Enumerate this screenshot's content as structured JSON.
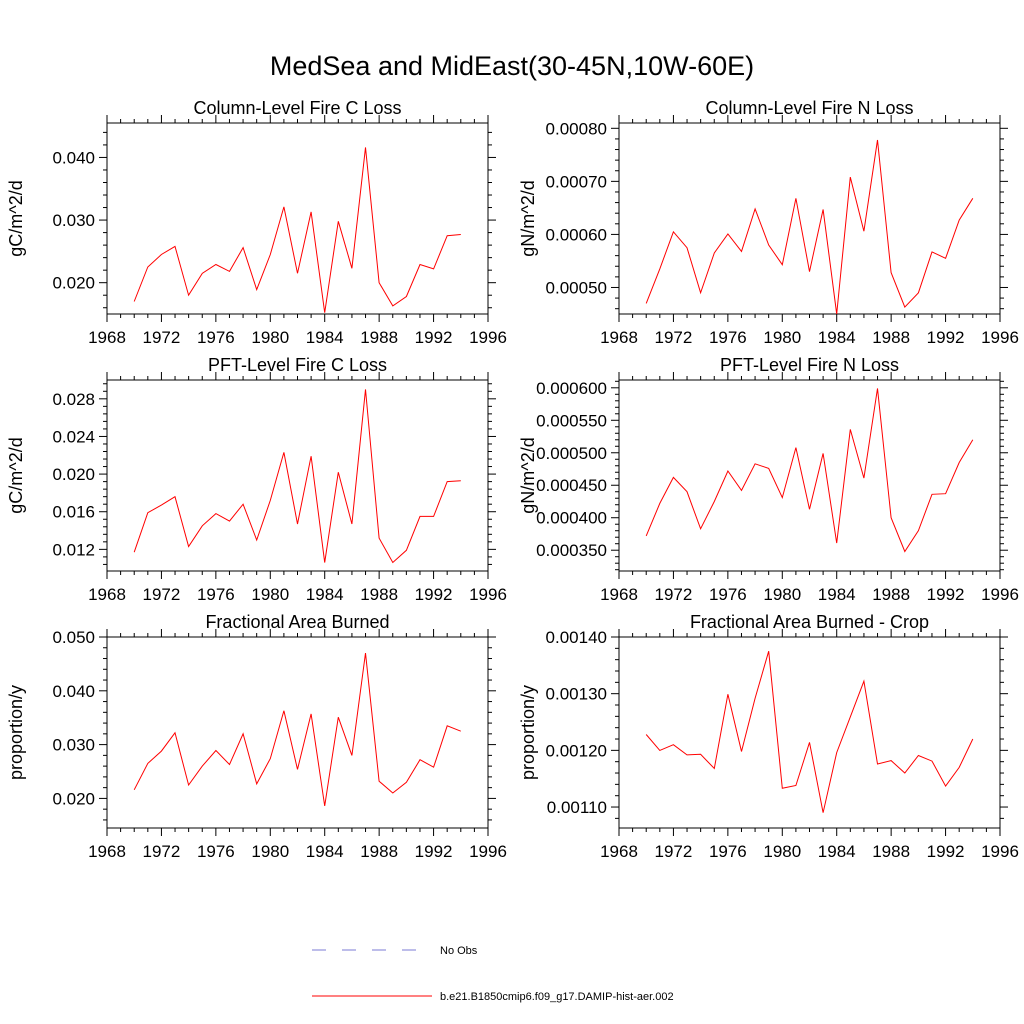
{
  "figure": {
    "title": "MedSea and MidEast(30-45N,10W-60E)"
  },
  "legend": [
    {
      "label": "No Obs",
      "color": "#7b7bd6",
      "style": "dashed"
    },
    {
      "label": "b.e21.B1850cmip6.f09_g17.DAMIP-hist-aer.002",
      "color": "#ff0000",
      "style": "solid"
    }
  ],
  "chart_data": [
    {
      "type": "line",
      "title": "Column-Level Fire C Loss",
      "ylabel": "gC/m^2/d",
      "xlim": [
        1968,
        1996
      ],
      "ylim": [
        0.015,
        0.0455
      ],
      "xticks": [
        1968,
        1972,
        1976,
        1980,
        1984,
        1988,
        1992,
        1996
      ],
      "yticks": [
        0.02,
        0.03,
        0.04
      ],
      "ytick_labels": [
        "0.020",
        "0.030",
        "0.040"
      ],
      "series": [
        {
          "color": "#ff0000",
          "x": [
            1970,
            1971,
            1972,
            1973,
            1974,
            1975,
            1976,
            1977,
            1978,
            1979,
            1980,
            1981,
            1982,
            1983,
            1984,
            1985,
            1986,
            1987,
            1988,
            1989,
            1990,
            1991,
            1992,
            1993,
            1994
          ],
          "y": [
            0.017,
            0.0225,
            0.0245,
            0.0258,
            0.018,
            0.0215,
            0.0229,
            0.0218,
            0.0256,
            0.0189,
            0.0245,
            0.0321,
            0.0215,
            0.0313,
            0.0152,
            0.0298,
            0.0223,
            0.0416,
            0.02,
            0.0163,
            0.0178,
            0.0229,
            0.0222,
            0.0275,
            0.0277
          ]
        }
      ]
    },
    {
      "type": "line",
      "title": "Column-Level Fire N Loss",
      "ylabel": "gN/m^2/d",
      "xlim": [
        1968,
        1996
      ],
      "ylim": [
        0.00045,
        0.00081
      ],
      "xticks": [
        1968,
        1972,
        1976,
        1980,
        1984,
        1988,
        1992,
        1996
      ],
      "yticks": [
        0.0005,
        0.0006,
        0.0007,
        0.0008
      ],
      "ytick_labels": [
        "0.00050",
        "0.00060",
        "0.00070",
        "0.00080"
      ],
      "series": [
        {
          "color": "#ff0000",
          "x": [
            1970,
            1971,
            1972,
            1973,
            1974,
            1975,
            1976,
            1977,
            1978,
            1979,
            1980,
            1981,
            1982,
            1983,
            1984,
            1985,
            1986,
            1987,
            1988,
            1989,
            1990,
            1991,
            1992,
            1993,
            1994
          ],
          "y": [
            0.00047,
            0.000535,
            0.000605,
            0.000575,
            0.00049,
            0.000565,
            0.000601,
            0.000568,
            0.000648,
            0.00058,
            0.000543,
            0.000668,
            0.00053,
            0.000647,
            0.00045,
            0.000708,
            0.000606,
            0.000778,
            0.000528,
            0.000463,
            0.00049,
            0.000567,
            0.000555,
            0.000627,
            0.000668
          ]
        }
      ]
    },
    {
      "type": "line",
      "title": "PFT-Level Fire C Loss",
      "ylabel": "gC/m^2/d",
      "xlim": [
        1968,
        1996
      ],
      "ylim": [
        0.0097,
        0.03
      ],
      "xticks": [
        1968,
        1972,
        1976,
        1980,
        1984,
        1988,
        1992,
        1996
      ],
      "yticks": [
        0.012,
        0.016,
        0.02,
        0.024,
        0.028
      ],
      "ytick_labels": [
        "0.012",
        "0.016",
        "0.020",
        "0.024",
        "0.028"
      ],
      "series": [
        {
          "color": "#ff0000",
          "x": [
            1970,
            1971,
            1972,
            1973,
            1974,
            1975,
            1976,
            1977,
            1978,
            1979,
            1980,
            1981,
            1982,
            1983,
            1984,
            1985,
            1986,
            1987,
            1988,
            1989,
            1990,
            1991,
            1992,
            1993,
            1994
          ],
          "y": [
            0.0117,
            0.0159,
            0.0167,
            0.0176,
            0.0123,
            0.0145,
            0.0158,
            0.015,
            0.0168,
            0.013,
            0.0172,
            0.0223,
            0.0147,
            0.0219,
            0.0106,
            0.0202,
            0.0147,
            0.029,
            0.0132,
            0.0106,
            0.0119,
            0.0155,
            0.0155,
            0.0192,
            0.0193
          ]
        }
      ]
    },
    {
      "type": "line",
      "title": "PFT-Level Fire N Loss",
      "ylabel": "gN/m^2/d",
      "xlim": [
        1968,
        1996
      ],
      "ylim": [
        0.000318,
        0.000612
      ],
      "xticks": [
        1968,
        1972,
        1976,
        1980,
        1984,
        1988,
        1992,
        1996
      ],
      "yticks": [
        0.00035,
        0.0004,
        0.00045,
        0.0005,
        0.00055,
        0.0006
      ],
      "ytick_labels": [
        "0.000350",
        "0.000400",
        "0.000450",
        "0.000500",
        "0.000550",
        "0.000600"
      ],
      "series": [
        {
          "color": "#ff0000",
          "x": [
            1970,
            1971,
            1972,
            1973,
            1974,
            1975,
            1976,
            1977,
            1978,
            1979,
            1980,
            1981,
            1982,
            1983,
            1984,
            1985,
            1986,
            1987,
            1988,
            1989,
            1990,
            1991,
            1992,
            1993,
            1994
          ],
          "y": [
            0.000372,
            0.000422,
            0.000462,
            0.00044,
            0.000383,
            0.000425,
            0.000472,
            0.000442,
            0.000483,
            0.000476,
            0.000431,
            0.000508,
            0.000413,
            0.000499,
            0.000361,
            0.000536,
            0.000461,
            0.000599,
            0.0004,
            0.000348,
            0.00038,
            0.000436,
            0.000437,
            0.000485,
            0.00052
          ]
        }
      ]
    },
    {
      "type": "line",
      "title": "Fractional Area Burned",
      "ylabel": "proportion/y",
      "xlim": [
        1968,
        1996
      ],
      "ylim": [
        0.0145,
        0.05
      ],
      "xticks": [
        1968,
        1972,
        1976,
        1980,
        1984,
        1988,
        1992,
        1996
      ],
      "yticks": [
        0.02,
        0.03,
        0.04,
        0.05
      ],
      "ytick_labels": [
        "0.020",
        "0.030",
        "0.040",
        "0.050"
      ],
      "series": [
        {
          "color": "#ff0000",
          "x": [
            1970,
            1971,
            1972,
            1973,
            1974,
            1975,
            1976,
            1977,
            1978,
            1979,
            1980,
            1981,
            1982,
            1983,
            1984,
            1985,
            1986,
            1987,
            1988,
            1989,
            1990,
            1991,
            1992,
            1993,
            1994
          ],
          "y": [
            0.0216,
            0.0265,
            0.0288,
            0.0322,
            0.0225,
            0.026,
            0.0289,
            0.0263,
            0.032,
            0.0227,
            0.0274,
            0.0363,
            0.0254,
            0.0357,
            0.0186,
            0.0351,
            0.028,
            0.047,
            0.0232,
            0.021,
            0.023,
            0.0272,
            0.0258,
            0.0335,
            0.0325
          ]
        }
      ]
    },
    {
      "type": "line",
      "title": "Fractional Area Burned - Crop",
      "ylabel": "proportion/y",
      "xlim": [
        1968,
        1996
      ],
      "ylim": [
        0.001063,
        0.0014
      ],
      "xticks": [
        1968,
        1972,
        1976,
        1980,
        1984,
        1988,
        1992,
        1996
      ],
      "yticks": [
        0.0011,
        0.0012,
        0.0013,
        0.0014
      ],
      "ytick_labels": [
        "0.00110",
        "0.00120",
        "0.00130",
        "0.00140"
      ],
      "series": [
        {
          "color": "#ff0000",
          "x": [
            1970,
            1971,
            1972,
            1973,
            1974,
            1975,
            1976,
            1977,
            1978,
            1979,
            1980,
            1981,
            1982,
            1983,
            1984,
            1985,
            1986,
            1987,
            1988,
            1989,
            1990,
            1991,
            1992,
            1993,
            1994
          ],
          "y": [
            0.001228,
            0.0012,
            0.00121,
            0.001192,
            0.001193,
            0.001168,
            0.001299,
            0.001198,
            0.001292,
            0.001375,
            0.001133,
            0.001138,
            0.001214,
            0.00109,
            0.001196,
            0.001259,
            0.001322,
            0.001176,
            0.001182,
            0.00116,
            0.001191,
            0.001181,
            0.001137,
            0.00117,
            0.00122
          ]
        }
      ]
    }
  ]
}
